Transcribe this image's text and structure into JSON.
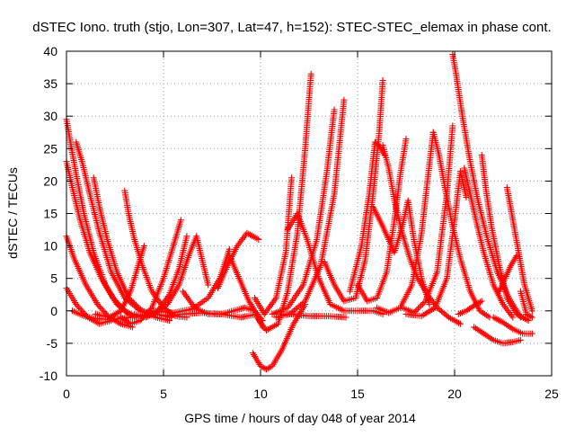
{
  "chart_data": {
    "type": "scatter",
    "title": "dSTEC Iono. truth (stjo, Lon=307, Lat=47, h=152): STEC-STEC_elemax in phase cont.",
    "xlabel": "GPS time / hours of day 048 of year 2014",
    "ylabel": "dSTEC  / TECUs",
    "xlim": [
      0,
      25
    ],
    "ylim": [
      -10,
      40
    ],
    "xticks": [
      0,
      5,
      10,
      15,
      20,
      25
    ],
    "yticks": [
      -10,
      -5,
      0,
      5,
      10,
      15,
      20,
      25,
      30,
      35,
      40
    ],
    "grid": true,
    "marker": "+",
    "colors": {
      "series": "#ff0000",
      "grid": "#a0a0a0",
      "axis": "#000000"
    },
    "series": [
      {
        "x": [
          0.0,
          0.2,
          0.5,
          0.9,
          1.4,
          2.0,
          2.6,
          3.2,
          3.7
        ],
        "y": [
          29.5,
          26,
          21,
          15,
          9,
          4,
          1,
          -0.5,
          -1
        ]
      },
      {
        "x": [
          0.0,
          0.3,
          0.7,
          1.2,
          1.8,
          2.4,
          3.0,
          3.6
        ],
        "y": [
          23,
          19,
          14,
          9,
          5,
          2,
          0,
          -1
        ]
      },
      {
        "x": [
          0.0,
          0.4,
          1.0,
          1.6,
          2.2,
          2.8,
          3.4
        ],
        "y": [
          11.5,
          8,
          4,
          1,
          -1,
          -2,
          -2.5
        ]
      },
      {
        "x": [
          0.0,
          0.5,
          1.1,
          1.7,
          2.3
        ],
        "y": [
          3.5,
          1,
          -1,
          -2,
          -1.5
        ]
      },
      {
        "x": [
          0.5,
          0.8,
          1.2,
          1.7,
          2.3,
          3.0,
          3.8,
          4.6,
          5.4
        ],
        "y": [
          26,
          23,
          18,
          12,
          6,
          2,
          0,
          -0.5,
          -1
        ]
      },
      {
        "x": [
          1.4,
          1.7,
          2.1,
          2.6,
          3.2,
          3.9,
          4.6,
          5.3
        ],
        "y": [
          20.5,
          16,
          11,
          6,
          2,
          0,
          -1,
          -1.5
        ]
      },
      {
        "x": [
          0.3,
          0.9,
          1.5,
          2.1,
          2.7,
          3.3,
          3.9
        ],
        "y": [
          0,
          -0.8,
          -1.2,
          -1.3,
          -1.2,
          -1,
          -0.6
        ]
      },
      {
        "x": [
          3.0,
          3.2,
          3.5,
          3.9,
          4.4,
          5.0,
          5.6,
          6.2
        ],
        "y": [
          18.5,
          15,
          11,
          7,
          3,
          0.5,
          -0.8,
          -1
        ]
      },
      {
        "x": [
          1.5,
          2.2,
          2.8,
          3.3,
          3.7,
          4.0
        ],
        "y": [
          -0.5,
          -1,
          0,
          3,
          7,
          10
        ]
      },
      {
        "x": [
          2.8,
          3.3,
          3.8,
          4.4,
          5.0,
          5.5,
          5.9
        ],
        "y": [
          -1,
          -2,
          -1.5,
          0.5,
          5,
          10,
          14
        ]
      },
      {
        "x": [
          3.5,
          4.1,
          4.7,
          5.3,
          5.8,
          6.2
        ],
        "y": [
          -0.5,
          -1,
          0,
          2.5,
          6.5,
          11.5
        ]
      },
      {
        "x": [
          3.8,
          4.5,
          5.2,
          5.8,
          6.3,
          6.7,
          7.3
        ],
        "y": [
          -1,
          -0.5,
          1,
          4,
          8.5,
          11.5,
          4
        ]
      },
      {
        "x": [
          4.5,
          5.5,
          6.5,
          7.3,
          7.9,
          8.4
        ],
        "y": [
          0,
          -0.3,
          0.3,
          2,
          5,
          9.5
        ]
      },
      {
        "x": [
          6.0,
          6.6,
          7.3,
          8.0,
          8.6,
          9.2,
          9.7,
          10.1
        ],
        "y": [
          3,
          0.5,
          -0.5,
          -0.5,
          0,
          0.5,
          0,
          -1.5
        ]
      },
      {
        "x": [
          5.0,
          6.0,
          7.0,
          8.0,
          9.0,
          9.8
        ],
        "y": [
          -0.8,
          -0.5,
          -0.3,
          -0.5,
          -1,
          -0.5
        ]
      },
      {
        "x": [
          7.8,
          8.3,
          8.8,
          9.3,
          9.9
        ],
        "y": [
          3.5,
          7,
          10,
          12,
          11
        ]
      },
      {
        "x": [
          8.4,
          8.9,
          9.4,
          9.8,
          10.1
        ],
        "y": [
          8.5,
          5,
          1.5,
          -0.5,
          -2.5
        ]
      },
      {
        "x": [
          9.6,
          10.0,
          10.3,
          10.6,
          11.1,
          11.7,
          12.3
        ],
        "y": [
          -6.5,
          -8.5,
          -9,
          -8.5,
          -6,
          -2,
          1
        ]
      },
      {
        "x": [
          9.8,
          10.3,
          10.9,
          11.4,
          11.9,
          12.3,
          12.6
        ],
        "y": [
          -1,
          -3,
          -2,
          3,
          12,
          25,
          36.5
        ]
      },
      {
        "x": [
          9.7,
          10.2,
          10.8,
          11.3,
          11.6
        ],
        "y": [
          2,
          -0.5,
          2,
          9,
          20.5
        ]
      },
      {
        "x": [
          10.6,
          11.5,
          12.5,
          13.5,
          14.4
        ],
        "y": [
          -0.5,
          -0.5,
          -0.8,
          -0.8,
          -1
        ]
      },
      {
        "x": [
          10.6,
          11.4,
          12.2,
          12.9,
          13.4,
          13.8
        ],
        "y": [
          -0.5,
          0.5,
          4,
          11,
          21,
          31
        ]
      },
      {
        "x": [
          10.8,
          11.5,
          12.3,
          13.1,
          13.8,
          14.3
        ],
        "y": [
          -1,
          -0.5,
          1.5,
          7,
          18,
          32.5
        ]
      },
      {
        "x": [
          11.4,
          11.9,
          12.4,
          13.0,
          13.6,
          14.3,
          15.0,
          15.8,
          16.3
        ],
        "y": [
          12.5,
          15,
          11,
          5,
          1,
          0,
          0,
          0,
          -0.5
        ]
      },
      {
        "x": [
          13.3,
          13.8,
          14.3,
          14.9,
          15.4,
          15.8,
          16.1,
          16.3
        ],
        "y": [
          7.5,
          4,
          1.5,
          2,
          8,
          18,
          27,
          35.5
        ]
      },
      {
        "x": [
          14.6,
          15.2,
          15.6,
          15.9,
          16.1,
          16.4
        ],
        "y": [
          3,
          10,
          18,
          26,
          25.5,
          24
        ]
      },
      {
        "x": [
          16.3,
          16.6,
          16.9,
          17.3,
          17.7,
          18.1,
          18.6,
          19.1,
          19.7,
          20.3
        ],
        "y": [
          25.5,
          22,
          17,
          12,
          8,
          5,
          2.5,
          0.5,
          -1,
          -2
        ]
      },
      {
        "x": [
          15.0,
          15.5,
          16.0,
          16.5,
          16.9,
          17.2,
          17.5
        ],
        "y": [
          4,
          1.5,
          2,
          6,
          14,
          21,
          26.5
        ]
      },
      {
        "x": [
          15.8,
          16.3,
          16.9,
          17.3,
          17.6,
          17.9,
          18.3,
          18.7
        ],
        "y": [
          16,
          13,
          9,
          13,
          17,
          11,
          5,
          1
        ]
      },
      {
        "x": [
          16.0,
          16.6,
          17.2,
          17.8,
          18.3,
          18.6,
          18.9
        ],
        "y": [
          0.5,
          -0.3,
          0.5,
          4,
          12,
          20,
          27.5
        ]
      },
      {
        "x": [
          18.9,
          19.2,
          19.5,
          19.9,
          20.3,
          20.8,
          21.3,
          21.8
        ],
        "y": [
          27.5,
          24,
          19,
          13,
          8,
          3,
          0,
          -1
        ]
      },
      {
        "x": [
          17.3,
          17.9,
          18.5,
          19.1,
          19.6,
          19.9
        ],
        "y": [
          0.5,
          -0.3,
          1.5,
          6,
          18,
          28.5
        ]
      },
      {
        "x": [
          17.5,
          18.3,
          19.0,
          19.6,
          20.0,
          20.3,
          20.6
        ],
        "y": [
          -0.5,
          -0.8,
          0.5,
          5,
          14,
          21.5,
          17.5
        ]
      },
      {
        "x": [
          19.9,
          20.1,
          20.4,
          20.8,
          21.2,
          21.7,
          22.2,
          22.8,
          23.4
        ],
        "y": [
          39.5,
          36,
          30,
          23,
          17,
          11,
          6,
          2,
          -1
        ]
      },
      {
        "x": [
          20.5,
          20.8,
          21.1,
          21.5,
          22.0,
          22.5,
          23.0
        ],
        "y": [
          22,
          18,
          14,
          9,
          4,
          1,
          -1
        ]
      },
      {
        "x": [
          20.2,
          20.6,
          21.0,
          21.4
        ],
        "y": [
          -0.5,
          0,
          0.8,
          1.5
        ]
      },
      {
        "x": [
          21.4,
          21.6,
          21.9,
          22.3,
          22.7,
          23.2,
          23.8
        ],
        "y": [
          24,
          19,
          13,
          7,
          2,
          -0.5,
          -1.5
        ]
      },
      {
        "x": [
          21.0,
          21.5,
          22.0,
          22.5,
          23.0,
          23.4
        ],
        "y": [
          -2.5,
          -3.5,
          -4.5,
          -5,
          -4.8,
          -4.5
        ]
      },
      {
        "x": [
          22.3,
          22.6,
          22.9,
          23.2
        ],
        "y": [
          3,
          5,
          7,
          8.5
        ]
      },
      {
        "x": [
          22.0,
          22.5,
          23.0,
          23.5,
          24.0
        ],
        "y": [
          -1,
          -1.8,
          -2.8,
          -3.5,
          -3.5
        ]
      },
      {
        "x": [
          22.7,
          23.0,
          23.3,
          23.6,
          24.0
        ],
        "y": [
          19,
          14,
          9,
          4,
          0
        ]
      },
      {
        "x": [
          23.4,
          23.7,
          24.0
        ],
        "y": [
          3,
          -0.5,
          -1
        ]
      }
    ]
  }
}
